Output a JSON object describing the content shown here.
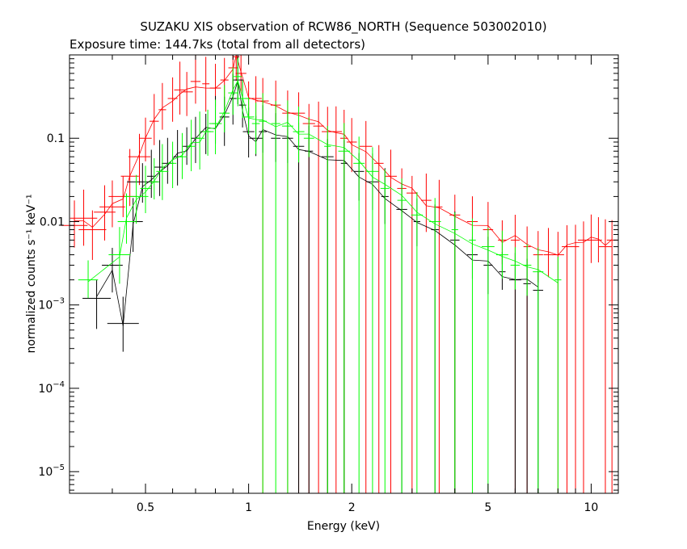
{
  "chart_data": {
    "type": "scatter",
    "title": "SUZAKU XIS observation of RCW86_NORTH (Sequence 503002010)",
    "subtitle": "Exposure time: 144.7ks (total from all detectors)",
    "xlabel": "Energy (keV)",
    "ylabel": "normalized counts s⁻¹ keV⁻¹",
    "xscale": "log",
    "yscale": "log",
    "xlim": [
      0.3,
      12
    ],
    "ylim": [
      5.5e-06,
      1.0
    ],
    "grid": false,
    "legend": "none",
    "x_ticks": [
      {
        "value": 0.5,
        "label": "0.5"
      },
      {
        "value": 1,
        "label": "1"
      },
      {
        "value": 2,
        "label": "2"
      },
      {
        "value": 5,
        "label": "5"
      },
      {
        "value": 10,
        "label": "10"
      }
    ],
    "y_ticks": [
      {
        "value": 0.1,
        "base": "0.1",
        "exp": ""
      },
      {
        "value": 0.01,
        "base": "0.01",
        "exp": ""
      },
      {
        "value": 0.001,
        "base": "10",
        "exp": "−3"
      },
      {
        "value": 0.0001,
        "base": "10",
        "exp": "−4"
      },
      {
        "value": 1e-05,
        "base": "10",
        "exp": "−5"
      }
    ],
    "series": [
      {
        "color": "#ff0000",
        "points": [
          [
            0.31,
            0.009
          ],
          [
            0.33,
            0.011
          ],
          [
            0.35,
            0.008
          ],
          [
            0.38,
            0.013
          ],
          [
            0.4,
            0.015
          ],
          [
            0.43,
            0.02
          ],
          [
            0.45,
            0.035
          ],
          [
            0.48,
            0.06
          ],
          [
            0.5,
            0.1
          ],
          [
            0.53,
            0.16
          ],
          [
            0.56,
            0.22
          ],
          [
            0.6,
            0.3
          ],
          [
            0.63,
            0.38
          ],
          [
            0.66,
            0.36
          ],
          [
            0.7,
            0.48
          ],
          [
            0.75,
            0.45
          ],
          [
            0.8,
            0.4
          ],
          [
            0.85,
            0.5
          ],
          [
            0.9,
            0.7
          ],
          [
            0.92,
            0.95
          ],
          [
            0.95,
            0.6
          ],
          [
            1.0,
            0.3
          ],
          [
            1.05,
            0.3
          ],
          [
            1.1,
            0.28
          ],
          [
            1.2,
            0.25
          ],
          [
            1.3,
            0.2
          ],
          [
            1.4,
            0.2
          ],
          [
            1.5,
            0.15
          ],
          [
            1.6,
            0.14
          ],
          [
            1.7,
            0.12
          ],
          [
            1.8,
            0.12
          ],
          [
            1.9,
            0.1
          ],
          [
            2.0,
            0.09
          ],
          [
            2.2,
            0.08
          ],
          [
            2.4,
            0.05
          ],
          [
            2.6,
            0.035
          ],
          [
            2.8,
            0.025
          ],
          [
            3.0,
            0.022
          ],
          [
            3.3,
            0.018
          ],
          [
            3.6,
            0.015
          ],
          [
            4.0,
            0.012
          ],
          [
            4.5,
            0.01
          ],
          [
            5.0,
            0.008
          ],
          [
            5.5,
            0.006
          ],
          [
            6.0,
            0.006
          ],
          [
            6.5,
            0.005
          ],
          [
            7.0,
            0.004
          ],
          [
            7.5,
            0.004
          ],
          [
            8.0,
            0.004
          ],
          [
            8.5,
            0.005
          ],
          [
            9.0,
            0.005
          ],
          [
            9.5,
            0.006
          ],
          [
            10.0,
            0.006
          ],
          [
            10.5,
            0.006
          ],
          [
            11.0,
            0.005
          ],
          [
            11.5,
            0.006
          ]
        ]
      },
      {
        "color": "#000000",
        "points": [
          [
            0.36,
            0.0012
          ],
          [
            0.4,
            0.003
          ],
          [
            0.43,
            0.0006
          ],
          [
            0.46,
            0.01
          ],
          [
            0.49,
            0.03
          ],
          [
            0.52,
            0.035
          ],
          [
            0.55,
            0.045
          ],
          [
            0.58,
            0.05
          ],
          [
            0.62,
            0.06
          ],
          [
            0.66,
            0.08
          ],
          [
            0.7,
            0.1
          ],
          [
            0.75,
            0.12
          ],
          [
            0.8,
            0.15
          ],
          [
            0.85,
            0.18
          ],
          [
            0.9,
            0.3
          ],
          [
            0.93,
            0.5
          ],
          [
            0.96,
            0.25
          ],
          [
            1.0,
            0.12
          ],
          [
            1.05,
            0.1
          ],
          [
            1.1,
            0.12
          ],
          [
            1.2,
            0.1
          ],
          [
            1.3,
            0.1
          ],
          [
            1.4,
            0.08
          ],
          [
            1.5,
            0.07
          ],
          [
            1.7,
            0.06
          ],
          [
            1.9,
            0.05
          ],
          [
            2.1,
            0.04
          ],
          [
            2.3,
            0.03
          ],
          [
            2.5,
            0.02
          ],
          [
            2.8,
            0.014
          ],
          [
            3.1,
            0.01
          ],
          [
            3.5,
            0.008
          ],
          [
            4.0,
            0.006
          ],
          [
            4.5,
            0.004
          ],
          [
            5.0,
            0.003
          ],
          [
            5.5,
            0.0025
          ],
          [
            6.0,
            0.002
          ],
          [
            6.5,
            0.0018
          ],
          [
            7.0,
            0.0015
          ]
        ]
      },
      {
        "color": "#00ff00",
        "points": [
          [
            0.34,
            0.002
          ],
          [
            0.42,
            0.004
          ],
          [
            0.44,
            0.01
          ],
          [
            0.47,
            0.02
          ],
          [
            0.5,
            0.025
          ],
          [
            0.53,
            0.03
          ],
          [
            0.56,
            0.04
          ],
          [
            0.6,
            0.05
          ],
          [
            0.64,
            0.06
          ],
          [
            0.68,
            0.08
          ],
          [
            0.72,
            0.1
          ],
          [
            0.76,
            0.12
          ],
          [
            0.8,
            0.15
          ],
          [
            0.85,
            0.2
          ],
          [
            0.9,
            0.35
          ],
          [
            0.93,
            0.55
          ],
          [
            0.96,
            0.3
          ],
          [
            1.0,
            0.18
          ],
          [
            1.05,
            0.15
          ],
          [
            1.1,
            0.16
          ],
          [
            1.2,
            0.15
          ],
          [
            1.3,
            0.14
          ],
          [
            1.4,
            0.12
          ],
          [
            1.5,
            0.1
          ],
          [
            1.7,
            0.08
          ],
          [
            1.9,
            0.07
          ],
          [
            2.1,
            0.05
          ],
          [
            2.3,
            0.04
          ],
          [
            2.5,
            0.025
          ],
          [
            2.8,
            0.018
          ],
          [
            3.1,
            0.012
          ],
          [
            3.5,
            0.01
          ],
          [
            4.0,
            0.008
          ],
          [
            4.5,
            0.006
          ],
          [
            5.0,
            0.005
          ],
          [
            5.5,
            0.004
          ],
          [
            6.0,
            0.003
          ],
          [
            6.5,
            0.003
          ],
          [
            7.0,
            0.0025
          ],
          [
            8.0,
            0.002
          ]
        ]
      }
    ]
  }
}
